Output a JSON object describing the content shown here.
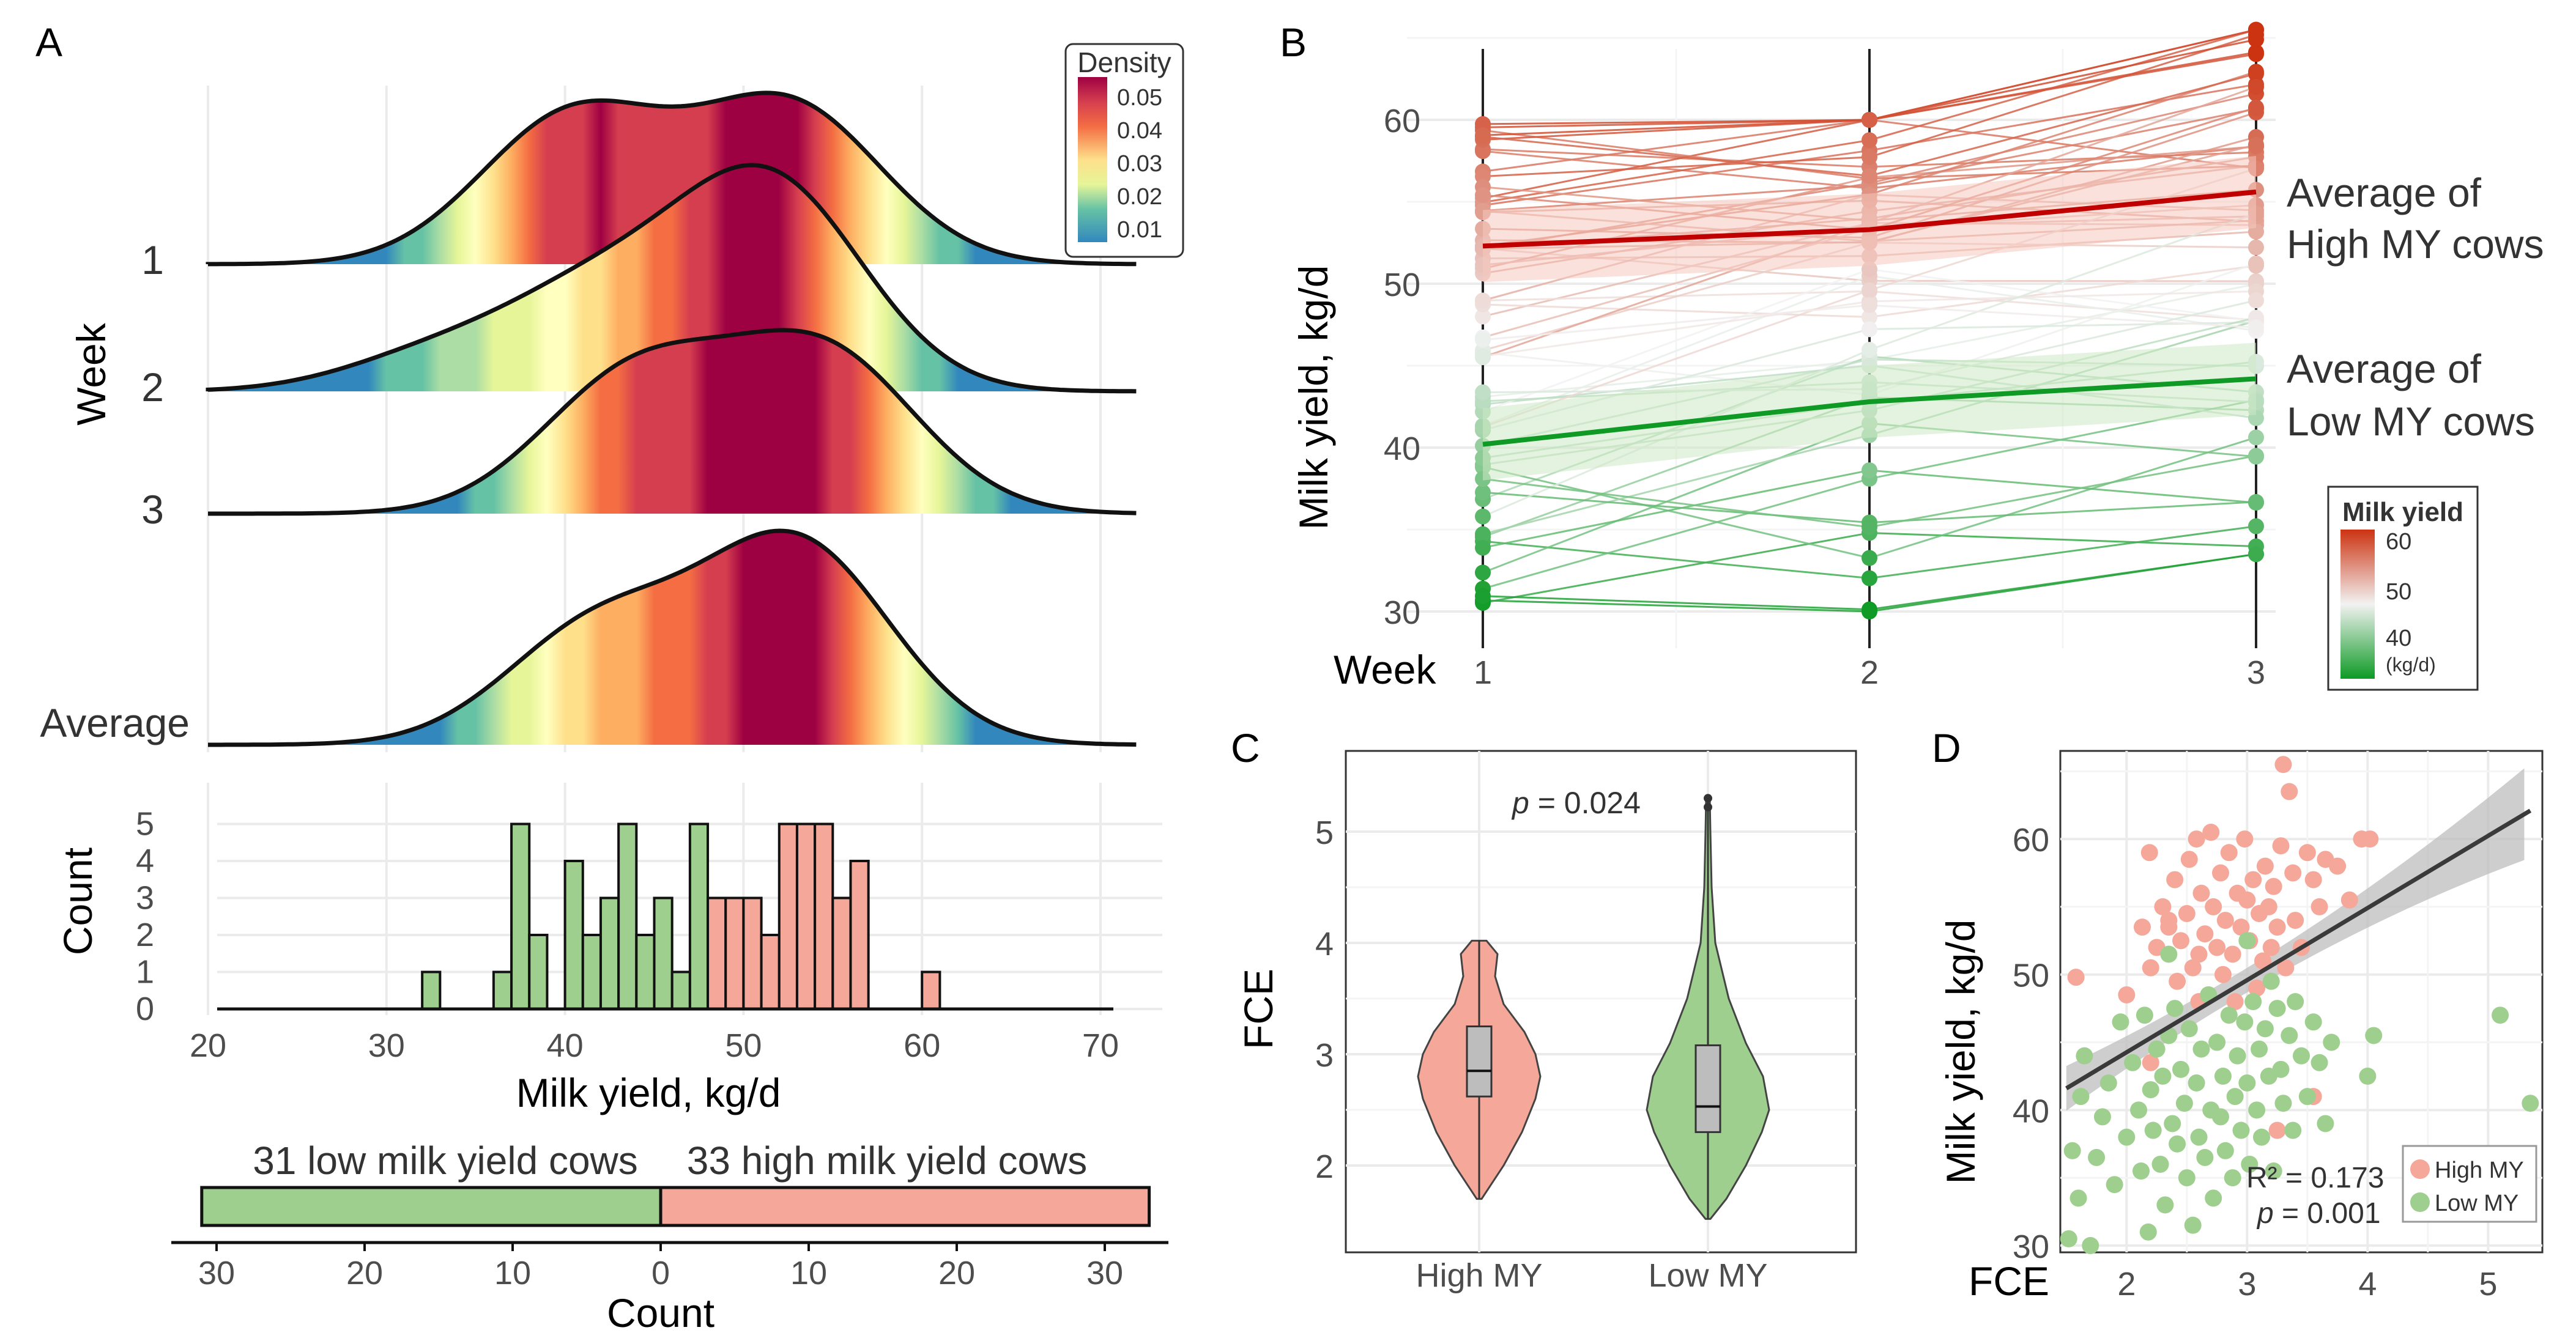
{
  "panels": {
    "a": "A",
    "b": "B",
    "c": "C",
    "d": "D"
  },
  "colors": {
    "high_fill": "#f5a89a",
    "low_fill": "#9fcf8f",
    "high_text": "#f4a090",
    "low_text": "#8fcc7c",
    "high_avg": "#c00000",
    "low_avg": "#0e9a25"
  },
  "panelA": {
    "ridge_ylabel": "Week",
    "ridge_rows": [
      "1",
      "2",
      "3",
      "Average"
    ],
    "legend": {
      "title": "Density",
      "ticks": [
        "0.05",
        "0.04",
        "0.03",
        "0.02",
        "0.01"
      ],
      "gradient": [
        "#5e4fa2",
        "#3288bd",
        "#66c2a5",
        "#abdda4",
        "#e6f598",
        "#ffffbf",
        "#fee08b",
        "#fdae61",
        "#f46d43",
        "#d53e4f",
        "#9e0142"
      ]
    },
    "hist_ylabel": "Count",
    "hist_yticks": [
      "0",
      "1",
      "2",
      "3",
      "4",
      "5"
    ],
    "xlabel": "Milk yield, kg/d",
    "xticks": [
      "20",
      "30",
      "40",
      "50",
      "60",
      "70"
    ],
    "bar_low_label": "31 low milk yield cows",
    "bar_high_label": "33 high milk yield cows",
    "bar_xticks": [
      "30",
      "20",
      "10",
      "0",
      "10",
      "20",
      "30"
    ],
    "bar_xlabel": "Count"
  },
  "panelB": {
    "ylabel": "Milk yield, kg/d",
    "yticks": [
      "30",
      "40",
      "50",
      "60"
    ],
    "xlabel": "Week",
    "xticks": [
      "1",
      "2",
      "3"
    ],
    "high_label_1": "Average of",
    "high_label_2": "High MY cows",
    "low_label_1": "Average of",
    "low_label_2": "Low MY cows",
    "legend": {
      "title": "Milk yield",
      "ticks": [
        "60",
        "50",
        "40",
        "(kg/d)"
      ]
    }
  },
  "panelC": {
    "ylabel": "FCE",
    "yticks": [
      "2",
      "3",
      "4",
      "5"
    ],
    "xticks": [
      "High MY",
      "Low MY"
    ],
    "p_prefix": "p",
    "p_value": " = 0.024"
  },
  "panelD": {
    "ylabel": "Milk yield, kg/d",
    "xlabel": "FCE",
    "yticks": [
      "30",
      "40",
      "50",
      "60"
    ],
    "xticks": [
      "2",
      "3",
      "4",
      "5"
    ],
    "r2": "R² = 0.173",
    "p_prefix": "p",
    "p_value": " = 0.001",
    "legend": [
      "High MY",
      "Low  MY"
    ]
  },
  "chart_data": [
    {
      "panel": "A-ridgeline",
      "type": "area",
      "xlabel": "Milk yield, kg/d",
      "ylabel": "Week",
      "xlim": [
        20,
        72
      ],
      "series": [
        {
          "name": "1",
          "peaks": [
            {
              "x": 40.5,
              "h": 0.82
            },
            {
              "x": 52.5,
              "h": 0.87
            }
          ]
        },
        {
          "name": "2",
          "peaks": [
            {
              "x": 51.5,
              "h": 1.0
            },
            {
              "x": 42,
              "h": 0.45
            },
            {
              "x": 33,
              "h": 0.18
            }
          ]
        },
        {
          "name": "3",
          "peaks": [
            {
              "x": 44,
              "h": 0.72
            },
            {
              "x": 54.5,
              "h": 0.82
            }
          ]
        },
        {
          "name": "Average",
          "peaks": [
            {
              "x": 53,
              "h": 1.0
            },
            {
              "x": 42,
              "h": 0.6
            }
          ]
        }
      ]
    },
    {
      "panel": "A-histogram",
      "type": "bar",
      "xlabel": "Milk yield, kg/d",
      "ylabel": "Count",
      "xlim": [
        20,
        70
      ],
      "ylim": [
        0,
        5
      ],
      "bin_width": 1,
      "bins_low": [
        [
          32,
          1
        ],
        [
          36,
          1
        ],
        [
          37,
          5
        ],
        [
          38,
          2
        ],
        [
          39,
          0
        ],
        [
          40,
          4
        ],
        [
          41,
          2
        ],
        [
          42,
          3
        ],
        [
          43,
          5
        ],
        [
          44,
          2
        ],
        [
          45,
          3
        ],
        [
          46,
          1
        ],
        [
          47,
          5
        ]
      ],
      "bins_high": [
        [
          48,
          3
        ],
        [
          49,
          3
        ],
        [
          50,
          3
        ],
        [
          51,
          2
        ],
        [
          52,
          5
        ],
        [
          53,
          5
        ],
        [
          54,
          5
        ],
        [
          55,
          3
        ],
        [
          56,
          4
        ],
        [
          60,
          1
        ]
      ]
    },
    {
      "panel": "A-count-bar",
      "type": "bar",
      "categories": [
        "31 low milk yield cows",
        "33 high milk yield cows"
      ],
      "values": [
        31,
        33
      ],
      "xlabel": "Count"
    },
    {
      "panel": "B",
      "type": "line",
      "xlabel": "Week",
      "ylabel": "Milk yield, kg/d",
      "x": [
        1,
        2,
        3
      ],
      "ylim": [
        29.5,
        66
      ],
      "series": [
        {
          "name": "Average of High MY cows",
          "values": [
            52.3,
            53.3,
            55.6
          ]
        },
        {
          "name": "Average of Low MY cows",
          "values": [
            40.2,
            42.8,
            44.2
          ]
        }
      ]
    },
    {
      "panel": "C",
      "type": "violin",
      "ylabel": "FCE",
      "categories": [
        "High MY",
        "Low MY"
      ],
      "ylim": [
        1.5,
        5.6
      ],
      "box": [
        {
          "category": "High MY",
          "min": 1.7,
          "q1": 2.62,
          "median": 2.85,
          "q3": 3.25,
          "max": 4.02
        },
        {
          "category": "Low MY",
          "min": 1.52,
          "q1": 2.3,
          "median": 2.53,
          "q3": 3.08,
          "max": 5.3
        }
      ],
      "p_value": 0.024
    },
    {
      "panel": "D",
      "type": "scatter",
      "xlabel": "FCE",
      "ylabel": "Milk yield, kg/d",
      "xlim": [
        1.45,
        5.45
      ],
      "ylim": [
        29.5,
        66.5
      ],
      "regression": {
        "x": [
          1.5,
          5.35
        ],
        "y": [
          41.6,
          62.1
        ]
      },
      "r2": 0.173,
      "p_value": 0.001,
      "series": [
        {
          "name": "High MY",
          "points": [
            [
              1.58,
              49.8
            ],
            [
              2.0,
              48.5
            ],
            [
              2.13,
              53.5
            ],
            [
              2.19,
              59.0
            ],
            [
              2.2,
              50.5
            ],
            [
              2.25,
              52.0
            ],
            [
              2.3,
              55.0
            ],
            [
              2.35,
              53.5
            ],
            [
              2.4,
              57.0
            ],
            [
              2.42,
              49.5
            ],
            [
              2.45,
              52.5
            ],
            [
              2.5,
              54.5
            ],
            [
              2.52,
              58.5
            ],
            [
              2.55,
              50.5
            ],
            [
              2.58,
              60.0
            ],
            [
              2.6,
              51.5
            ],
            [
              2.62,
              56.0
            ],
            [
              2.65,
              53.0
            ],
            [
              2.68,
              48.5
            ],
            [
              2.7,
              60.5
            ],
            [
              2.72,
              55.0
            ],
            [
              2.75,
              52.0
            ],
            [
              2.78,
              57.5
            ],
            [
              2.8,
              50.0
            ],
            [
              2.82,
              54.0
            ],
            [
              2.85,
              59.0
            ],
            [
              2.88,
              51.5
            ],
            [
              2.9,
              48.0
            ],
            [
              2.92,
              56.0
            ],
            [
              2.95,
              53.5
            ],
            [
              2.98,
              60.0
            ],
            [
              3.0,
              55.5
            ],
            [
              3.02,
              52.5
            ],
            [
              3.05,
              57.0
            ],
            [
              3.08,
              49.0
            ],
            [
              3.1,
              54.5
            ],
            [
              3.13,
              51.0
            ],
            [
              3.15,
              58.0
            ],
            [
              3.18,
              55.0
            ],
            [
              3.2,
              52.0
            ],
            [
              3.22,
              56.5
            ],
            [
              3.25,
              53.5
            ],
            [
              3.28,
              59.5
            ],
            [
              3.3,
              65.5
            ],
            [
              3.32,
              50.5
            ],
            [
              3.35,
              63.5
            ],
            [
              3.38,
              57.5
            ],
            [
              3.4,
              54.0
            ],
            [
              3.45,
              52.0
            ],
            [
              3.5,
              59.0
            ],
            [
              3.55,
              57.0
            ],
            [
              3.6,
              55.0
            ],
            [
              3.65,
              58.5
            ],
            [
              3.75,
              58.0
            ],
            [
              3.85,
              55.5
            ],
            [
              3.95,
              60.0
            ],
            [
              4.02,
              60.0
            ],
            [
              3.25,
              38.5
            ],
            [
              3.55,
              41.0
            ],
            [
              2.2,
              43.5
            ],
            [
              2.6,
              48.0
            ],
            [
              2.35,
              54.0
            ]
          ]
        },
        {
          "name": "Low MY",
          "points": [
            [
              1.52,
              30.5
            ],
            [
              1.55,
              37.0
            ],
            [
              1.6,
              33.5
            ],
            [
              1.62,
              41.0
            ],
            [
              1.65,
              44.0
            ],
            [
              1.7,
              30.0
            ],
            [
              1.75,
              36.5
            ],
            [
              1.8,
              39.5
            ],
            [
              1.85,
              42.0
            ],
            [
              1.9,
              34.5
            ],
            [
              1.95,
              46.5
            ],
            [
              2.0,
              38.0
            ],
            [
              2.05,
              43.5
            ],
            [
              2.1,
              40.0
            ],
            [
              2.12,
              35.5
            ],
            [
              2.15,
              47.0
            ],
            [
              2.18,
              31.0
            ],
            [
              2.2,
              41.5
            ],
            [
              2.22,
              38.5
            ],
            [
              2.25,
              44.5
            ],
            [
              2.28,
              36.0
            ],
            [
              2.3,
              42.5
            ],
            [
              2.32,
              33.0
            ],
            [
              2.35,
              45.5
            ],
            [
              2.38,
              39.0
            ],
            [
              2.4,
              47.5
            ],
            [
              2.42,
              37.5
            ],
            [
              2.45,
              43.0
            ],
            [
              2.48,
              40.5
            ],
            [
              2.5,
              35.0
            ],
            [
              2.52,
              46.0
            ],
            [
              2.55,
              31.5
            ],
            [
              2.58,
              42.0
            ],
            [
              2.6,
              38.0
            ],
            [
              2.62,
              44.5
            ],
            [
              2.65,
              36.5
            ],
            [
              2.68,
              48.5
            ],
            [
              2.7,
              40.0
            ],
            [
              2.72,
              33.5
            ],
            [
              2.75,
              45.0
            ],
            [
              2.78,
              39.5
            ],
            [
              2.8,
              42.5
            ],
            [
              2.82,
              37.0
            ],
            [
              2.85,
              47.0
            ],
            [
              2.88,
              35.0
            ],
            [
              2.9,
              41.0
            ],
            [
              2.92,
              44.0
            ],
            [
              2.95,
              38.5
            ],
            [
              2.98,
              46.5
            ],
            [
              3.0,
              42.0
            ],
            [
              3.02,
              36.0
            ],
            [
              3.05,
              48.0
            ],
            [
              3.08,
              40.0
            ],
            [
              3.1,
              44.5
            ],
            [
              3.12,
              38.0
            ],
            [
              3.15,
              46.0
            ],
            [
              3.18,
              42.5
            ],
            [
              3.2,
              49.5
            ],
            [
              3.22,
              35.5
            ],
            [
              3.25,
              47.5
            ],
            [
              3.28,
              43.0
            ],
            [
              3.3,
              40.5
            ],
            [
              3.35,
              45.5
            ],
            [
              3.38,
              38.5
            ],
            [
              3.4,
              48.0
            ],
            [
              3.45,
              44.0
            ],
            [
              3.5,
              41.0
            ],
            [
              3.55,
              46.5
            ],
            [
              3.6,
              43.5
            ],
            [
              3.65,
              39.0
            ],
            [
              3.7,
              45.0
            ],
            [
              4.0,
              42.5
            ],
            [
              4.05,
              45.5
            ],
            [
              5.1,
              47.0
            ],
            [
              5.35,
              40.5
            ],
            [
              2.35,
              51.5
            ],
            [
              3.0,
              52.5
            ]
          ]
        }
      ]
    }
  ]
}
